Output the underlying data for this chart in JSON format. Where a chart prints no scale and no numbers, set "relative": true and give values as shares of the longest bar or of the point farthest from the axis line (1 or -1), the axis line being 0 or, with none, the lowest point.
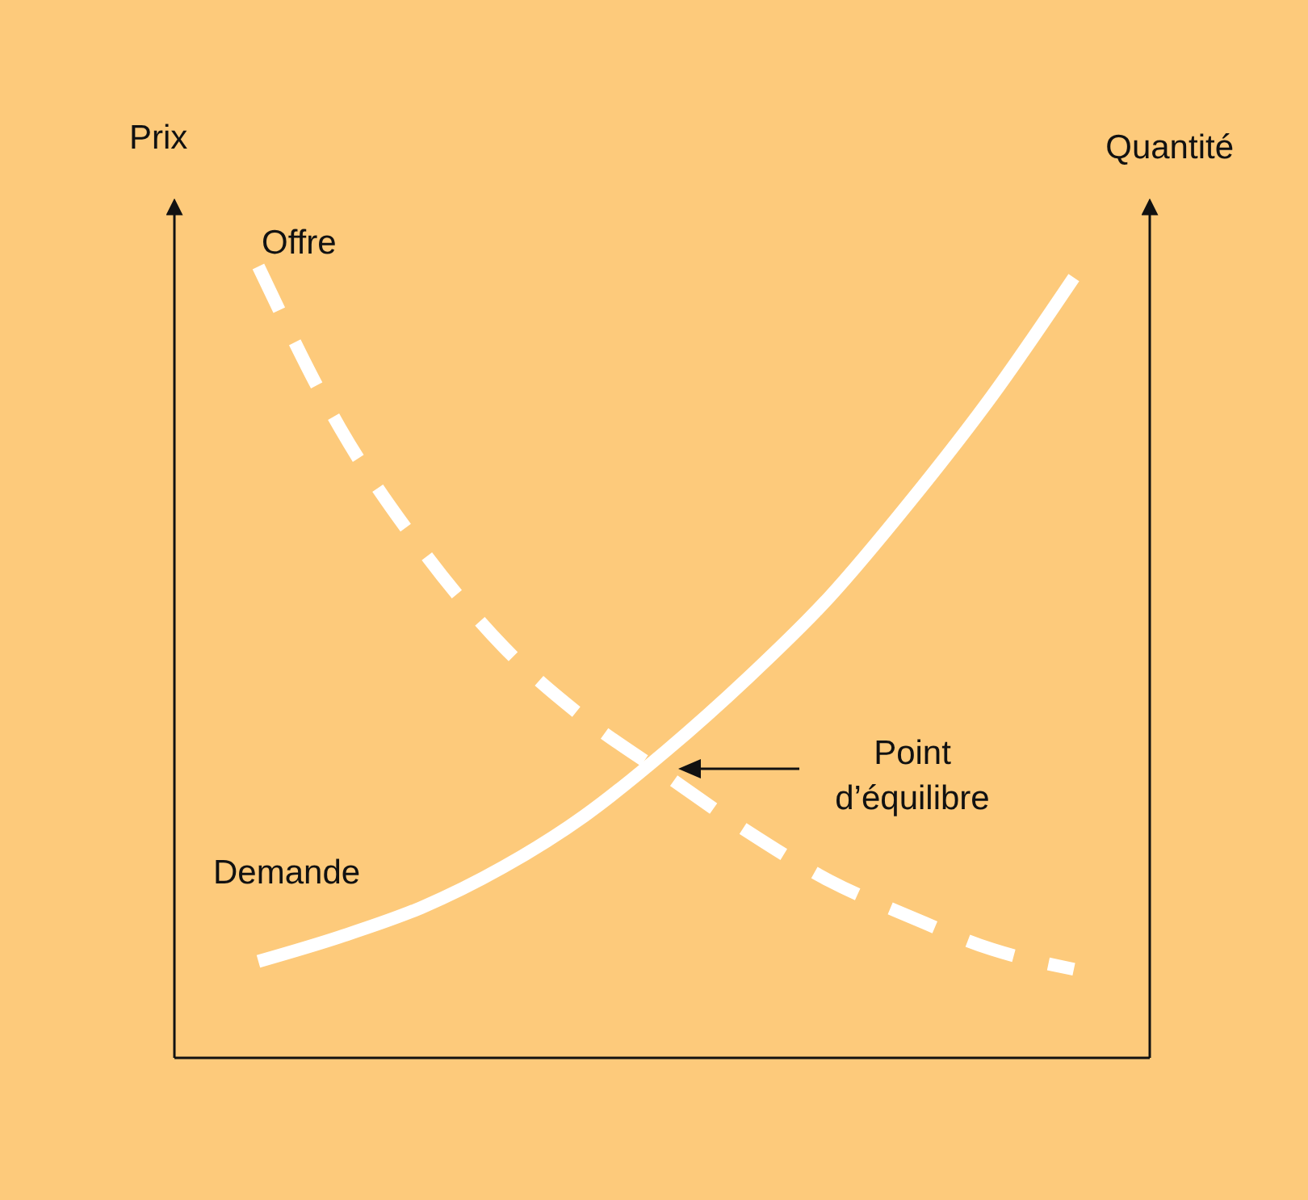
{
  "chart_data": {
    "type": "line",
    "relative": true,
    "ylabel": "Prix",
    "y2label": "Quantité",
    "categories": [
      null,
      null,
      null,
      null,
      null,
      null,
      null,
      null,
      null,
      null,
      null
    ],
    "series": [
      {
        "name": "Offre",
        "color": "#ffffff",
        "line_style": "dashed",
        "values": [
          1,
          0.796,
          0.643,
          0.52,
          0.429,
          0.357,
          0.286,
          0.224,
          0.178,
          0.137,
          0.112
        ]
      },
      {
        "name": "Demande",
        "color": "#ffffff",
        "line_style": "solid",
        "values": [
          0.122,
          0.153,
          0.19,
          0.241,
          0.306,
          0.388,
          0.48,
          0.582,
          0.704,
          0.837,
          0.986
        ]
      }
    ],
    "annotations": [
      "Point d’équilibre"
    ]
  }
}
